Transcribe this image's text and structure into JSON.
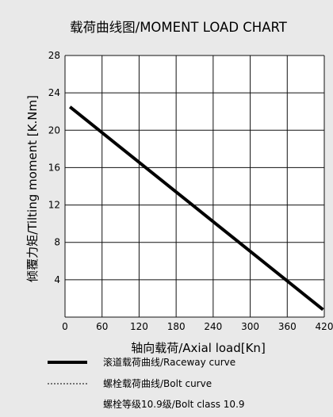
{
  "chart_data": {
    "type": "line",
    "title": "载荷曲线图/MOMENT LOAD CHART",
    "xlabel": "轴向载荷/Axial load[Kn]",
    "ylabel": "倾覆力矩/Tilting moment [K.Nm]",
    "xlim": [
      0,
      420
    ],
    "ylim": [
      0,
      28
    ],
    "xticks": [
      "0",
      "60",
      "120",
      "180",
      "240",
      "300",
      "360",
      "420"
    ],
    "yticks": [
      "4",
      "8",
      "12",
      "16",
      "20",
      "24",
      "28"
    ],
    "grid": true,
    "series": [
      {
        "name": "滚道载荷曲线/Raceway curve",
        "style": "solid",
        "color": "#000000",
        "x": [
          8,
          418
        ],
        "y": [
          22.5,
          0.8
        ]
      }
    ],
    "legend": [
      {
        "label": "滚道载荷曲线/Raceway curve",
        "style": "solid"
      },
      {
        "label": "螺栓载荷曲线/Bolt curve",
        "style": "dashed"
      },
      {
        "label": "螺栓等级10.9级/Bolt class 10.9",
        "style": "none"
      }
    ]
  }
}
